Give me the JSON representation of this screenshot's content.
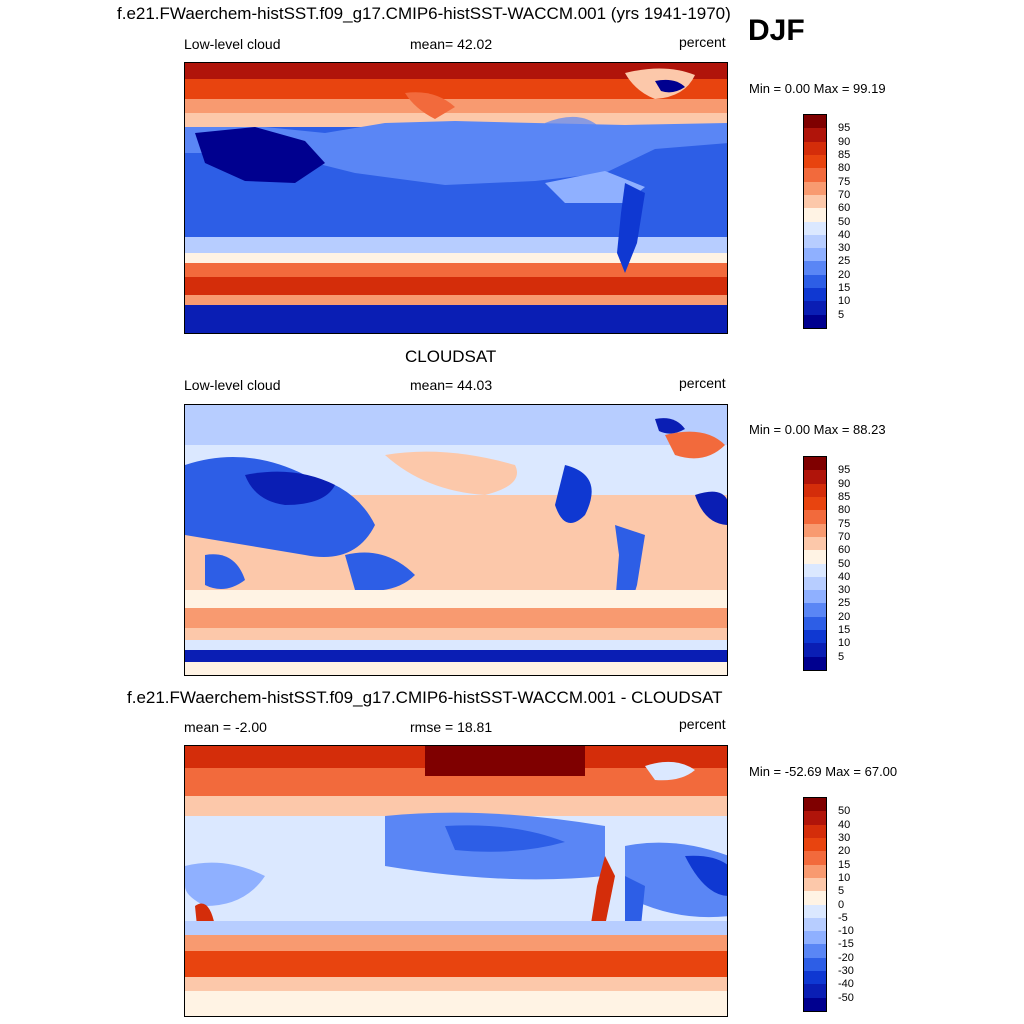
{
  "season": "DJF",
  "units": "percent",
  "panels": [
    {
      "title": "f.e21.FWaerchem-histSST.f09_g17.CMIP6-histSST-WACCM.001 (yrs 1941-1970)",
      "left_label": "Low-level cloud",
      "center_label": "mean=  42.02",
      "right_label": "percent",
      "minmax": "Min =   0.00 Max =  99.19",
      "levels": [
        "95",
        "90",
        "85",
        "80",
        "75",
        "70",
        "60",
        "50",
        "40",
        "30",
        "25",
        "20",
        "15",
        "10",
        "5"
      ],
      "colors": [
        "#7f0000",
        "#b0140a",
        "#d42d0a",
        "#e8440f",
        "#f26a3c",
        "#f89a70",
        "#fcc8aa",
        "#fff3e4",
        "#dbe8ff",
        "#b7cdff",
        "#8fb0ff",
        "#5a86f5",
        "#2d5ee6",
        "#0f38d2",
        "#0a1eb4",
        "#00008f"
      ]
    },
    {
      "title": "CLOUDSAT",
      "left_label": "Low-level cloud",
      "center_label": "mean=  44.03",
      "right_label": "percent",
      "minmax": "Min =   0.00 Max =  88.23",
      "levels": [
        "95",
        "90",
        "85",
        "80",
        "75",
        "70",
        "60",
        "50",
        "40",
        "30",
        "25",
        "20",
        "15",
        "10",
        "5"
      ],
      "colors": [
        "#7f0000",
        "#b0140a",
        "#d42d0a",
        "#e8440f",
        "#f26a3c",
        "#f89a70",
        "#fcc8aa",
        "#fff3e4",
        "#dbe8ff",
        "#b7cdff",
        "#8fb0ff",
        "#5a86f5",
        "#2d5ee6",
        "#0f38d2",
        "#0a1eb4",
        "#00008f"
      ]
    },
    {
      "title": "f.e21.FWaerchem-histSST.f09_g17.CMIP6-histSST-WACCM.001 - CLOUDSAT",
      "left_label": "mean =  -2.00",
      "center_label": "rmse =  18.81",
      "right_label": "percent",
      "minmax": "Min = -52.69 Max =  67.00",
      "levels": [
        "50",
        "40",
        "30",
        "20",
        "15",
        "10",
        "5",
        "0",
        "-5",
        "-10",
        "-15",
        "-20",
        "-30",
        "-40",
        "-50"
      ],
      "colors": [
        "#7f0000",
        "#b0140a",
        "#d42d0a",
        "#e8440f",
        "#f26a3c",
        "#f89a70",
        "#fcc8aa",
        "#fff3e4",
        "#dbe8ff",
        "#b7cdff",
        "#8fb0ff",
        "#5a86f5",
        "#2d5ee6",
        "#0f38d2",
        "#0a1eb4",
        "#00008f"
      ]
    }
  ]
}
